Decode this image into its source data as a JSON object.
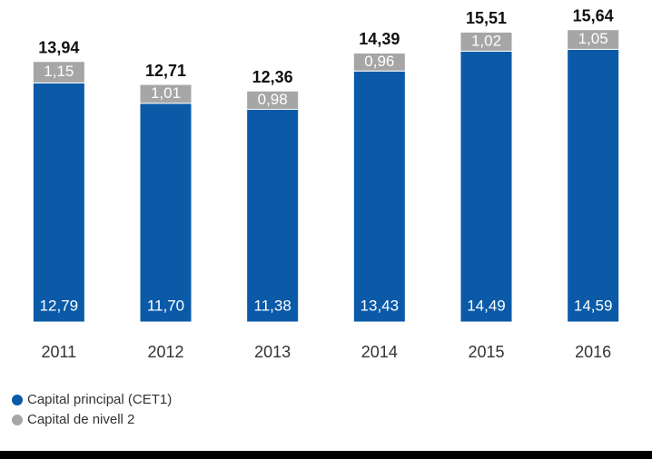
{
  "chart_data": {
    "type": "stacked_bar",
    "categories": [
      "2011",
      "2012",
      "2013",
      "2014",
      "2015",
      "2016"
    ],
    "series": [
      {
        "name": "Capital principal (CET1)",
        "color": "#0a5aa8",
        "values": [
          12.79,
          11.7,
          11.38,
          13.43,
          14.49,
          14.59
        ],
        "value_labels": [
          "12,79",
          "11,70",
          "11,38",
          "13,43",
          "14,49",
          "14,59"
        ]
      },
      {
        "name": "Capital de nivell 2",
        "color": "#a6a6a6",
        "values": [
          1.15,
          1.01,
          0.98,
          0.96,
          1.02,
          1.05
        ],
        "value_labels": [
          "1,15",
          "1,01",
          "0,98",
          "0,96",
          "1,02",
          "1,05"
        ]
      }
    ],
    "totals": [
      13.94,
      12.71,
      12.36,
      14.39,
      15.51,
      15.64
    ],
    "total_labels": [
      "13,94",
      "12,71",
      "12,36",
      "14,39",
      "15,51",
      "15,64"
    ],
    "ylim": [
      0,
      16.5
    ]
  }
}
